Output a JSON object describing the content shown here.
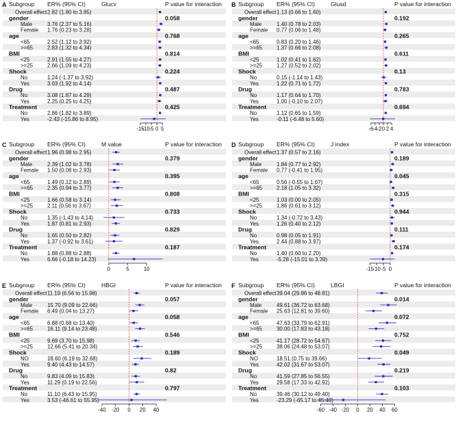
{
  "figure": {
    "colors": {
      "ci": "#3333cc",
      "point": "#2a2aa8",
      "refline": "#e04040",
      "axis": "#111111",
      "row_shade": "#ececec"
    },
    "labels": {
      "subgroup_header": "Subgroup",
      "er_header": "ER% (95% CI)",
      "p_header": "P value for interaction"
    }
  },
  "chart_data": [
    {
      "letter": "A",
      "type": "forest",
      "title": "Glucv",
      "xlim": [
        -15,
        8
      ],
      "ref": 0,
      "ticks": [
        -15,
        -10,
        -5,
        0,
        5
      ],
      "rows": [
        {
          "kind": "item",
          "label": "Overall effect",
          "est": 2.82,
          "lo": 1.8,
          "hi": 3.85,
          "text": "2.82 (1.80 to 3.85)"
        },
        {
          "kind": "group",
          "label": "gender",
          "p": "0.058"
        },
        {
          "kind": "item",
          "label": "Male",
          "est": 3.76,
          "lo": 2.37,
          "hi": 5.16,
          "text": "3.76 (2.37 to 5.16)"
        },
        {
          "kind": "item",
          "label": "Female",
          "est": 1.76,
          "lo": 0.23,
          "hi": 3.28,
          "text": "1.76 (0.23 to 3.28)"
        },
        {
          "kind": "group",
          "label": "age",
          "p": "0.768"
        },
        {
          "kind": "item",
          "label": "<65",
          "est": 2.52,
          "lo": 1.12,
          "hi": 3.92,
          "text": "2.52 (1.12 to 3.92)"
        },
        {
          "kind": "item",
          "label": ">=65",
          "est": 2.83,
          "lo": 1.32,
          "hi": 4.34,
          "text": "2.83 (1.32 to 4.34)"
        },
        {
          "kind": "group",
          "label": "BMI",
          "p": "0.814"
        },
        {
          "kind": "item",
          "label": "<25",
          "est": 2.91,
          "lo": 1.55,
          "hi": 4.27,
          "text": "2.91 (1.55 to 4.27)"
        },
        {
          "kind": "item",
          "label": ">=25",
          "est": 2.66,
          "lo": 1.09,
          "hi": 4.23,
          "text": "2.66 (1.09 to 4.23)"
        },
        {
          "kind": "group",
          "label": "Shock",
          "p": "0.224"
        },
        {
          "kind": "item",
          "label": "No",
          "est": 1.24,
          "lo": -1.37,
          "hi": 3.92,
          "text": "1.24 (-1.37 to 3.92)"
        },
        {
          "kind": "item",
          "label": "Yes",
          "est": 3.03,
          "lo": 1.92,
          "hi": 4.14,
          "text": "3.03 (1.92 to 4.14)"
        },
        {
          "kind": "group",
          "label": "Drug",
          "p": "0.487"
        },
        {
          "kind": "item",
          "label": "No",
          "est": 3.08,
          "lo": 1.87,
          "hi": 4.29,
          "text": "3.08 (1.87 to 4.29)"
        },
        {
          "kind": "item",
          "label": "Yes",
          "est": 2.25,
          "lo": 0.25,
          "hi": 4.25,
          "text": "2.25 (0.25 to 4.25)"
        },
        {
          "kind": "group",
          "label": "Treatment",
          "p": "0.425"
        },
        {
          "kind": "item",
          "label": "No",
          "est": 2.86,
          "lo": 1.82,
          "hi": 3.89,
          "text": "2.86 (1.82 to 3.89)"
        },
        {
          "kind": "item",
          "label": "Yes",
          "est": -2.43,
          "lo": -15.86,
          "hi": 8.95,
          "text": "-2.43 (-15.86 to 8.95)"
        }
      ]
    },
    {
      "letter": "B",
      "type": "forest",
      "title": "Glusd",
      "xlim": [
        -6.6,
        5.6
      ],
      "ref": 0,
      "ticks": [
        -6,
        -4,
        -2,
        0,
        2,
        4
      ],
      "rows": [
        {
          "kind": "item",
          "label": "Overall effect",
          "est": 1.13,
          "lo": 0.66,
          "hi": 1.6,
          "text": "1.13 (0.66 to 1.60)"
        },
        {
          "kind": "group",
          "label": "gender",
          "p": "0.192"
        },
        {
          "kind": "item",
          "label": "Male",
          "est": 1.4,
          "lo": 0.78,
          "hi": 2.03,
          "text": "1.40 (0.78 to 2.03)"
        },
        {
          "kind": "item",
          "label": "Female",
          "est": 0.77,
          "lo": 0.06,
          "hi": 1.48,
          "text": "0.77 (0.06 to 1.48)"
        },
        {
          "kind": "group",
          "label": "age",
          "p": "0.265"
        },
        {
          "kind": "item",
          "label": "<65",
          "est": 0.83,
          "lo": 0.2,
          "hi": 1.46,
          "text": "0.83 (0.20 to 1.46)"
        },
        {
          "kind": "item",
          "label": ">=65",
          "est": 1.37,
          "lo": 0.66,
          "hi": 2.08,
          "text": "1.37 (0.66 to 2.08)"
        },
        {
          "kind": "group",
          "label": "BMI",
          "p": "0.611"
        },
        {
          "kind": "item",
          "label": "<25",
          "est": 1.02,
          "lo": 0.41,
          "hi": 1.62,
          "text": "1.02 (0.41 to 1.62)"
        },
        {
          "kind": "item",
          "label": ">=25",
          "est": 1.27,
          "lo": 0.52,
          "hi": 2.02,
          "text": "1.27 (0.52 to 2.02)"
        },
        {
          "kind": "group",
          "label": "Shock",
          "p": "0.13"
        },
        {
          "kind": "item",
          "label": "No",
          "est": 0.15,
          "lo": -1.14,
          "hi": 1.43,
          "text": "0.15 (-1.14 to 1.43)"
        },
        {
          "kind": "item",
          "label": "Yes",
          "est": 1.22,
          "lo": 0.71,
          "hi": 1.72,
          "text": "1.22 (0.71 to 1.72)"
        },
        {
          "kind": "group",
          "label": "Drug",
          "p": "0.783"
        },
        {
          "kind": "item",
          "label": "No",
          "est": 1.17,
          "lo": 0.64,
          "hi": 1.7,
          "text": "1.17 (0.64 to 1.70)"
        },
        {
          "kind": "item",
          "label": "Yes",
          "est": 1.0,
          "lo": -0.1,
          "hi": 2.07,
          "text": "1.00 (-0.10 to 2.07)"
        },
        {
          "kind": "group",
          "label": "Treatment",
          "p": "0.694"
        },
        {
          "kind": "item",
          "label": "No",
          "est": 1.12,
          "lo": 0.65,
          "hi": 1.59,
          "text": "1.12 (0.65 to 1.59)"
        },
        {
          "kind": "item",
          "label": "Yes",
          "est": -0.11,
          "lo": -6.48,
          "hi": 5.6,
          "text": "-0.11 (-6.48 to 5.60)"
        }
      ]
    },
    {
      "letter": "C",
      "type": "forest",
      "title": "M value",
      "xlim": [
        -1.6,
        14.3
      ],
      "ref": 0,
      "ticks": [
        0,
        5,
        10
      ],
      "rows": [
        {
          "kind": "item",
          "label": "Overall effect",
          "est": 1.96,
          "lo": 0.98,
          "hi": 2.95,
          "text": "1.96 (0.98 to 2.95)"
        },
        {
          "kind": "group",
          "label": "gender",
          "p": "0.379"
        },
        {
          "kind": "item",
          "label": "Male",
          "est": 2.39,
          "lo": 1.02,
          "hi": 3.78,
          "text": "2.39 (1.02 to 3.78)"
        },
        {
          "kind": "item",
          "label": "Female",
          "est": 1.5,
          "lo": 0.08,
          "hi": 2.93,
          "text": "1.50 (0.08 to 2.93)"
        },
        {
          "kind": "group",
          "label": "age",
          "p": "0.395"
        },
        {
          "kind": "item",
          "label": "<65",
          "est": 1.49,
          "lo": 0.12,
          "hi": 2.89,
          "text": "1.49 (0.12 to 2.89)"
        },
        {
          "kind": "item",
          "label": ">=65",
          "est": 2.35,
          "lo": 0.94,
          "hi": 3.77,
          "text": "2.35 (0.94 to 3.77)"
        },
        {
          "kind": "group",
          "label": "BMI",
          "p": "0.808"
        },
        {
          "kind": "item",
          "label": "<25",
          "est": 1.66,
          "lo": 0.58,
          "hi": 3.14,
          "text": "1.66 (0.58 to 3.14)"
        },
        {
          "kind": "item",
          "label": ">=25",
          "est": 2.11,
          "lo": 0.56,
          "hi": 3.67,
          "text": "2.11 (0.56 to 3.67)"
        },
        {
          "kind": "group",
          "label": "Shock",
          "p": "0.733"
        },
        {
          "kind": "item",
          "label": "No",
          "est": 1.35,
          "lo": -1.43,
          "hi": 4.14,
          "text": "1.35 (-1.43 to 4.14)"
        },
        {
          "kind": "item",
          "label": "Yes",
          "est": 1.87,
          "lo": 0.81,
          "hi": 2.93,
          "text": "1.87 (0.81 to 2.93)"
        },
        {
          "kind": "group",
          "label": "Drug",
          "p": "0.829"
        },
        {
          "kind": "item",
          "label": "No",
          "est": 1.65,
          "lo": 0.5,
          "hi": 2.82,
          "text": "1.65 (0.50 to 2.82)"
        },
        {
          "kind": "item",
          "label": "Yes",
          "est": 1.37,
          "lo": -0.92,
          "hi": 3.61,
          "text": "1.37 (-0.92 to 3.61)"
        },
        {
          "kind": "group",
          "label": "Treatment",
          "p": "0.187"
        },
        {
          "kind": "item",
          "label": "No",
          "est": 1.88,
          "lo": 0.88,
          "hi": 2.88,
          "text": "1.88 (0.88 to 2.88)"
        },
        {
          "kind": "item",
          "label": "Yes",
          "est": 6.66,
          "lo": -0.18,
          "hi": 14.23,
          "text": "6.66 (-0.18 to 14.23)"
        }
      ]
    },
    {
      "letter": "D",
      "type": "forest",
      "title": "J index",
      "xlim": [
        -15.2,
        3.6
      ],
      "ref": 0,
      "ticks": [
        -15,
        -10,
        -5,
        0
      ],
      "rows": [
        {
          "kind": "item",
          "label": "Overall effect",
          "est": 1.37,
          "lo": 0.57,
          "hi": 2.16,
          "text": "1.37 (0.57 to 2.16)"
        },
        {
          "kind": "group",
          "label": "gender",
          "p": "0.189"
        },
        {
          "kind": "item",
          "label": "Male",
          "est": 1.84,
          "lo": 0.77,
          "hi": 2.92,
          "text": "1.84 (0.77 to 2.92)"
        },
        {
          "kind": "item",
          "label": "Female",
          "est": 0.77,
          "lo": -0.41,
          "hi": 1.95,
          "text": "0.77 (-0.41 to 1.95)"
        },
        {
          "kind": "group",
          "label": "age",
          "p": "0.045"
        },
        {
          "kind": "item",
          "label": "<65",
          "est": 0.56,
          "lo": -0.55,
          "hi": 1.67,
          "text": "0.56 (-0.55 to 1.67)"
        },
        {
          "kind": "item",
          "label": ">=65",
          "est": 2.18,
          "lo": 1.05,
          "hi": 3.32,
          "text": "2.18 (1.05 to 3.32)"
        },
        {
          "kind": "group",
          "label": "BMI",
          "p": "0.315"
        },
        {
          "kind": "item",
          "label": "<25",
          "est": 1.03,
          "lo": 0.0,
          "hi": 2.05,
          "text": "1.03 (0.00 to 2.05)"
        },
        {
          "kind": "item",
          "label": ">=25",
          "est": 1.86,
          "lo": 0.61,
          "hi": 3.12,
          "text": "1.86 (0.61 to 3.12)"
        },
        {
          "kind": "group",
          "label": "Shock",
          "p": "0.944"
        },
        {
          "kind": "item",
          "label": "No",
          "est": 1.34,
          "lo": -0.72,
          "hi": 3.43,
          "text": "1.34 (-0.72 to 3.43)"
        },
        {
          "kind": "item",
          "label": "Yes",
          "est": 1.26,
          "lo": 0.4,
          "hi": 2.12,
          "text": "1.26 (0.40 to 2.12)"
        },
        {
          "kind": "group",
          "label": "Drug",
          "p": "0.111"
        },
        {
          "kind": "item",
          "label": "No",
          "est": 0.98,
          "lo": 0.05,
          "hi": 1.91,
          "text": "0.98 (0.05 to 1.91)"
        },
        {
          "kind": "item",
          "label": "Yes",
          "est": 2.44,
          "lo": 0.88,
          "hi": 3.97,
          "text": "2.44 (0.88 to 3.97)"
        },
        {
          "kind": "group",
          "label": "Treatment",
          "p": "0.174"
        },
        {
          "kind": "item",
          "label": "No",
          "est": 1.4,
          "lo": 0.6,
          "hi": 2.2,
          "text": "1.40 (0.60 to 2.20)"
        },
        {
          "kind": "item",
          "label": "Yes",
          "est": -5.28,
          "lo": -15.01,
          "hi": 3.39,
          "text": "-5.28 (-15.01 to 3.39)"
        }
      ]
    },
    {
      "letter": "E",
      "type": "forest",
      "title": "HBGI",
      "xlim": [
        -47,
        56
      ],
      "ref": 0,
      "ticks": [
        -40,
        -20,
        0,
        20,
        40
      ],
      "rows": [
        {
          "kind": "item",
          "label": "Overall effect",
          "est": 11.19,
          "lo": 6.56,
          "hi": 15.98,
          "text": "11.19 (6.56 to 15.98)"
        },
        {
          "kind": "group",
          "label": "gender",
          "p": "0.057"
        },
        {
          "kind": "item",
          "label": "Male",
          "est": 15.7,
          "lo": 9.09,
          "hi": 22.66,
          "text": "15.70 (9.09 to 22.66)"
        },
        {
          "kind": "item",
          "label": "Female",
          "est": 6.49,
          "lo": 0.04,
          "hi": 13.27,
          "text": "6.49 (0.04 to 13.27)"
        },
        {
          "kind": "group",
          "label": "age",
          "p": "0.058"
        },
        {
          "kind": "item",
          "label": "<65",
          "est": 6.88,
          "lo": 0.68,
          "hi": 13.4,
          "text": "6.88 (0.68 to 13.40)"
        },
        {
          "kind": "item",
          "label": ">=65",
          "est": 16.11,
          "lo": 9.14,
          "hi": 23.48,
          "text": "16.11 (9.14 to 23.48)"
        },
        {
          "kind": "group",
          "label": "BMI",
          "p": "0.546"
        },
        {
          "kind": "item",
          "label": "<25",
          "est": 9.69,
          "lo": 3.7,
          "hi": 15.98,
          "text": "9.69 (3.70 to 15.98)"
        },
        {
          "kind": "item",
          "label": ">=25",
          "est": 12.66,
          "lo": 5.41,
          "hi": 20.34,
          "text": "12.66 (5.41 to 20.34)"
        },
        {
          "kind": "group",
          "label": "Shock",
          "p": "0.189"
        },
        {
          "kind": "item",
          "label": "NO",
          "est": 18.6,
          "lo": 6.19,
          "hi": 32.68,
          "text": "18.60 (6.19 to 32.68)"
        },
        {
          "kind": "item",
          "label": "Yes",
          "est": 9.4,
          "lo": 4.43,
          "hi": 14.57,
          "text": "9.40 (4.43 to 14.57)"
        },
        {
          "kind": "group",
          "label": "Drug",
          "p": "0.82"
        },
        {
          "kind": "item",
          "label": "No",
          "est": 9.83,
          "lo": 4.09,
          "hi": 15.83,
          "text": "9.83 (4.09 to 15.83)"
        },
        {
          "kind": "item",
          "label": "Yes",
          "est": 11.29,
          "lo": 0.19,
          "hi": 22.56,
          "text": "11.29 (0.19 to 22.56)"
        },
        {
          "kind": "group",
          "label": "Treatment",
          "p": "0.797"
        },
        {
          "kind": "item",
          "label": "No",
          "est": 11.1,
          "lo": 6.43,
          "hi": 15.95,
          "text": "11.10 (6.43 to 15.95)"
        },
        {
          "kind": "item",
          "label": "Yes",
          "est": 3.53,
          "lo": -46.61,
          "hi": 55.95,
          "text": "3.53 (-46.61 to 55.95)"
        }
      ]
    },
    {
      "letter": "F",
      "type": "forest",
      "title": "LBGI",
      "xlim": [
        -66,
        64
      ],
      "ref": 0,
      "ticks": [
        -60,
        -40,
        -20,
        0,
        20,
        40,
        60
      ],
      "rows": [
        {
          "kind": "item",
          "label": "Overall effect",
          "est": 39.04,
          "lo": 29.86,
          "hi": 48.81,
          "text": "39.04 (29.86 to 48.81)"
        },
        {
          "kind": "group",
          "label": "gender",
          "p": "0.014"
        },
        {
          "kind": "item",
          "label": "Male",
          "est": 49.61,
          "lo": 36.72,
          "hi": 63.68,
          "text": "49.61 (36.72 to 63.68)"
        },
        {
          "kind": "item",
          "label": "Female",
          "est": 25.63,
          "lo": 12.81,
          "hi": 39.6,
          "text": "25.63 (12.81 to 39.60)"
        },
        {
          "kind": "group",
          "label": "age",
          "p": "0.072"
        },
        {
          "kind": "item",
          "label": "<65",
          "est": 47.63,
          "lo": 33.79,
          "hi": 62.91,
          "text": "47.63 (33.79 to 62.91)"
        },
        {
          "kind": "item",
          "label": ">=65",
          "est": 30.0,
          "lo": 17.83,
          "hi": 43.18,
          "text": "30.00 (17.83 to 43.18)"
        },
        {
          "kind": "group",
          "label": "BMI",
          "p": "0.752"
        },
        {
          "kind": "item",
          "label": "<25",
          "est": 41.17,
          "lo": 28.72,
          "hi": 54.67,
          "text": "41.17 (28.72 to 54.67)"
        },
        {
          "kind": "item",
          "label": ">=25",
          "est": 38.06,
          "lo": 24.48,
          "hi": 53.07,
          "text": "38.06 (24.48 to 53.07)"
        },
        {
          "kind": "group",
          "label": "Shock",
          "p": "0.049"
        },
        {
          "kind": "item",
          "label": "NO",
          "est": 18.51,
          "lo": 0.75,
          "hi": 39.66,
          "text": "18.51 (0.75 to 39.66)"
        },
        {
          "kind": "item",
          "label": "Yes",
          "est": 42.02,
          "lo": 31.67,
          "hi": 53.07,
          "text": "42.02 (31.67 to 53.07)"
        },
        {
          "kind": "group",
          "label": "Drug",
          "p": "0.219"
        },
        {
          "kind": "item",
          "label": "No",
          "est": 41.59,
          "lo": 27.85,
          "hi": 56.55,
          "text": "41.59 (27.85 to 56.55)"
        },
        {
          "kind": "item",
          "label": "Yes",
          "est": 29.58,
          "lo": 17.33,
          "hi": 42.92,
          "text": "29.58 (17.33 to 42.92)"
        },
        {
          "kind": "group",
          "label": "Treatment",
          "p": "0.103"
        },
        {
          "kind": "item",
          "label": "No",
          "est": 39.46,
          "lo": 30.12,
          "hi": 49.4,
          "text": "39.46 (30.12 to 49.40)"
        },
        {
          "kind": "item",
          "label": "Yes",
          "est": -23.29,
          "lo": -65.17,
          "hi": 45.48,
          "text": "-23.29 (-65.17 to 45.48)"
        }
      ]
    }
  ]
}
